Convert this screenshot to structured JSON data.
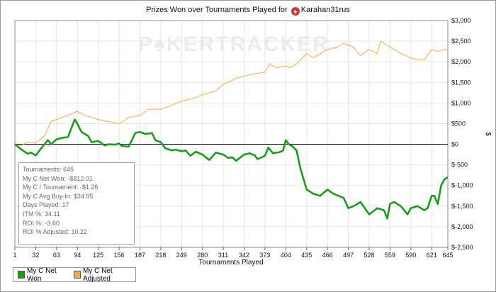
{
  "title": {
    "prefix": "Prizes Won over Tournaments Played for",
    "player": "Karahan31rus",
    "site_icon": "pokerstars-spade-icon"
  },
  "watermark": {
    "part1": "P",
    "part2": "KER",
    "part3": "TRACKER"
  },
  "stats": [
    "Tournaments: 645",
    "My C Net Won: -$812.01",
    "My C / Tournament: -$1.26",
    "My C Avg Buy-In: $34.95",
    "Days Played: 17",
    "ITM %: 34.11",
    "ROI %: -3.60",
    "ROI % Adjusted: 10.22"
  ],
  "colors": {
    "net_won": "#1a9c1a",
    "net_adjusted": "#f5a847",
    "zero_line": "#000000",
    "grid": "#e4e4e4"
  },
  "chart_data": {
    "type": "line",
    "title": "Prizes Won over Tournaments Played for Karahan31rus",
    "xlabel": "Tournaments Played",
    "ylabel": "$",
    "xlim": [
      1,
      645
    ],
    "ylim": [
      -2500,
      3000
    ],
    "x_ticks": [
      "1",
      "32",
      "63",
      "94",
      "125",
      "156",
      "187",
      "218",
      "249",
      "280",
      "311",
      "342",
      "373",
      "404",
      "435",
      "466",
      "497",
      "528",
      "559",
      "590",
      "621",
      "645"
    ],
    "y_ticks": [
      3000,
      2500,
      2000,
      1500,
      1000,
      500,
      0,
      -500,
      -1000,
      -1500,
      -2000,
      -2500
    ],
    "y_tick_labels": [
      "$3,000",
      "$2,500",
      "$2,000",
      "$1,500",
      "$1,000",
      "$500",
      "$0",
      "$-500",
      "$-1,000",
      "$-1,500",
      "$-2,000",
      "$-2,500"
    ],
    "legend_position": "bottom-left",
    "grid": true,
    "series": [
      {
        "name": "My C Net Won",
        "x": [
          1,
          10,
          20,
          25,
          32,
          40,
          50,
          55,
          63,
          70,
          80,
          90,
          94,
          100,
          110,
          115,
          125,
          135,
          140,
          150,
          156,
          160,
          170,
          175,
          180,
          187,
          195,
          205,
          210,
          218,
          225,
          235,
          240,
          249,
          255,
          262,
          270,
          280,
          290,
          300,
          311,
          318,
          325,
          330,
          342,
          350,
          358,
          362,
          373,
          378,
          385,
          395,
          400,
          404,
          408,
          414,
          420,
          426,
          435,
          445,
          455,
          466,
          475,
          490,
          497,
          505,
          515,
          528,
          540,
          550,
          555,
          559,
          565,
          575,
          585,
          590,
          600,
          610,
          615,
          621,
          625,
          630,
          635,
          640,
          645
        ],
        "values": [
          0,
          -120,
          -230,
          -200,
          -270,
          -100,
          100,
          0,
          120,
          150,
          180,
          600,
          500,
          300,
          200,
          50,
          80,
          -30,
          0,
          -10,
          20,
          -40,
          -60,
          100,
          270,
          300,
          250,
          270,
          100,
          50,
          -100,
          -150,
          -130,
          -170,
          -150,
          -280,
          -180,
          -250,
          -380,
          -200,
          -250,
          -330,
          -320,
          -400,
          -250,
          -220,
          -270,
          -360,
          -280,
          -80,
          -220,
          -190,
          -150,
          100,
          10,
          -50,
          -150,
          -600,
          -1100,
          -1200,
          -1250,
          -1100,
          -1200,
          -1300,
          -1550,
          -1500,
          -1400,
          -1700,
          -1550,
          -1600,
          -1800,
          -1450,
          -1400,
          -1500,
          -1700,
          -1550,
          -1500,
          -1600,
          -1550,
          -1250,
          -1250,
          -1450,
          -1000,
          -850,
          -800
        ]
      },
      {
        "name": "My C Net Adjusted",
        "x": [
          1,
          10,
          20,
          32,
          45,
          55,
          63,
          80,
          94,
          105,
          115,
          125,
          140,
          156,
          170,
          187,
          200,
          218,
          235,
          249,
          265,
          280,
          300,
          311,
          330,
          342,
          355,
          373,
          380,
          390,
          404,
          410,
          420,
          435,
          445,
          466,
          480,
          490,
          497,
          505,
          515,
          528,
          540,
          545,
          555,
          565,
          575,
          590,
          600,
          610,
          621,
          630,
          640,
          645
        ],
        "values": [
          0,
          -30,
          50,
          30,
          200,
          550,
          600,
          700,
          800,
          700,
          650,
          600,
          550,
          500,
          650,
          700,
          850,
          850,
          950,
          1050,
          1100,
          1200,
          1300,
          1450,
          1600,
          1650,
          1700,
          1750,
          1950,
          1850,
          1900,
          1850,
          1950,
          2200,
          2100,
          2300,
          2350,
          2450,
          2400,
          2350,
          2150,
          2300,
          2200,
          2500,
          2400,
          2300,
          2200,
          2100,
          2050,
          2050,
          2300,
          2250,
          2300,
          2300
        ]
      }
    ]
  },
  "legend": [
    {
      "label": "My C Net Won",
      "color": "#1a9c1a"
    },
    {
      "label": "My C Net Adjusted",
      "color": "#f5a847"
    }
  ]
}
